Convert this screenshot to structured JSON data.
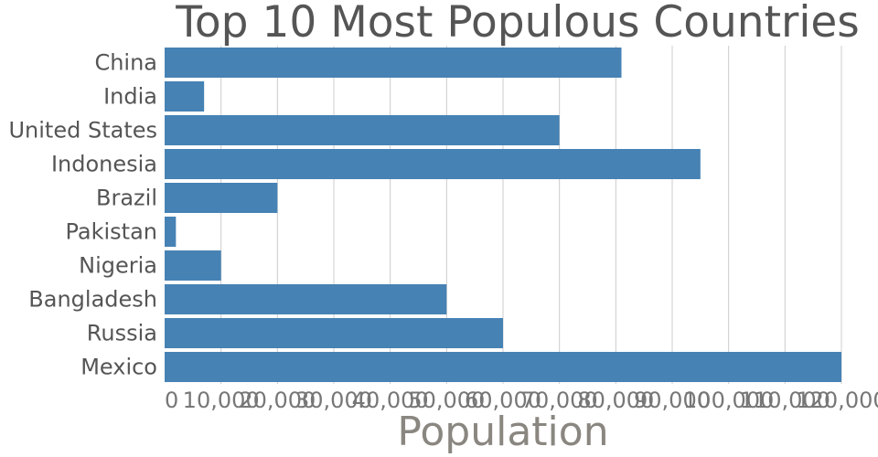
{
  "chart_data": {
    "type": "bar",
    "orientation": "horizontal",
    "title": "Top 10 Most Populous Countries",
    "xlabel": "Population",
    "ylabel": "",
    "categories": [
      "China",
      "India",
      "United States",
      "Indonesia",
      "Brazil",
      "Pakistan",
      "Nigeria",
      "Bangladesh",
      "Russia",
      "Mexico"
    ],
    "values": [
      81000,
      7000,
      70000,
      95000,
      20000,
      2000,
      10000,
      50000,
      60000,
      120000
    ],
    "xlim": [
      0,
      120000
    ],
    "x_ticks": [
      0,
      10000,
      20000,
      30000,
      40000,
      50000,
      60000,
      70000,
      80000,
      90000,
      100000,
      110000,
      120000
    ],
    "x_tick_labels": [
      "0",
      "10,000",
      "20,000",
      "30,000",
      "40,000",
      "50,000",
      "60,000",
      "70,000",
      "80,000",
      "90,000",
      "100,000",
      "110,000",
      "120,000"
    ],
    "grid": "vertical",
    "legend": "none",
    "bar_color": "#4682b4"
  }
}
